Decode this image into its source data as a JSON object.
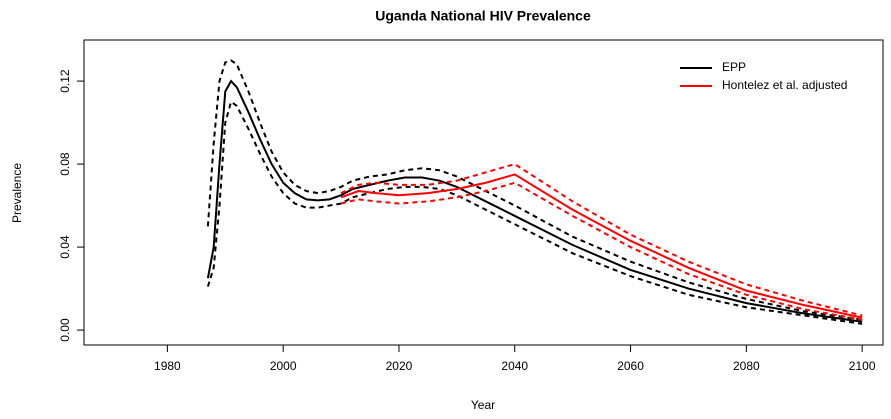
{
  "chart_data": {
    "type": "line",
    "title": "Uganda  National HIV Prevalence",
    "x_label": "Year",
    "y_label": "Prevalence",
    "xlim": [
      1965.6,
      2103.6
    ],
    "ylim": [
      -0.0072,
      0.1398
    ],
    "xticks": [
      1980,
      2000,
      2020,
      2040,
      2060,
      2080,
      2100
    ],
    "yticks": [
      {
        "value": 0,
        "label": "0.00"
      },
      0.04,
      0.08,
      0.12
    ],
    "legend_position": "top-right",
    "series": [
      {
        "name": "EPP",
        "color": "#000000",
        "x": [
          1987,
          1988,
          1989,
          1990,
          1991,
          1992,
          1994,
          1996,
          1998,
          2000,
          2002,
          2004,
          2006,
          2008,
          2010,
          2012,
          2015,
          2018,
          2021,
          2024,
          2027,
          2030,
          2035,
          2040,
          2050,
          2060,
          2070,
          2080,
          2090,
          2100
        ],
        "values": [
          0.025,
          0.04,
          0.08,
          0.115,
          0.12,
          0.117,
          0.105,
          0.092,
          0.08,
          0.071,
          0.066,
          0.063,
          0.0625,
          0.063,
          0.065,
          0.068,
          0.07,
          0.072,
          0.0735,
          0.0735,
          0.072,
          0.069,
          0.062,
          0.055,
          0.041,
          0.029,
          0.02,
          0.013,
          0.008,
          0.004
        ],
        "upper": [
          0.05,
          0.09,
          0.12,
          0.129,
          0.13,
          0.128,
          0.115,
          0.1,
          0.086,
          0.076,
          0.07,
          0.067,
          0.066,
          0.067,
          0.069,
          0.072,
          0.074,
          0.075,
          0.077,
          0.078,
          0.077,
          0.074,
          0.067,
          0.06,
          0.045,
          0.033,
          0.023,
          0.015,
          0.009,
          0.005
        ],
        "lower": [
          0.021,
          0.03,
          0.06,
          0.1,
          0.11,
          0.108,
          0.097,
          0.085,
          0.074,
          0.066,
          0.061,
          0.059,
          0.059,
          0.06,
          0.061,
          0.064,
          0.066,
          0.068,
          0.069,
          0.069,
          0.068,
          0.065,
          0.058,
          0.051,
          0.037,
          0.026,
          0.017,
          0.011,
          0.007,
          0.003
        ]
      },
      {
        "name": "Hontelez et al. adjusted",
        "color": "#ff0000",
        "x": [
          2010,
          2013,
          2016,
          2020,
          2025,
          2030,
          2035,
          2040,
          2050,
          2060,
          2070,
          2080,
          2090,
          2100
        ],
        "values": [
          0.064,
          0.067,
          0.066,
          0.065,
          0.066,
          0.068,
          0.071,
          0.075,
          0.058,
          0.043,
          0.03,
          0.019,
          0.012,
          0.006
        ],
        "upper": [
          0.066,
          0.07,
          0.071,
          0.07,
          0.07,
          0.072,
          0.076,
          0.08,
          0.062,
          0.046,
          0.033,
          0.022,
          0.014,
          0.007
        ],
        "lower": [
          0.061,
          0.063,
          0.062,
          0.061,
          0.062,
          0.064,
          0.067,
          0.071,
          0.055,
          0.04,
          0.027,
          0.017,
          0.01,
          0.005
        ]
      }
    ]
  }
}
